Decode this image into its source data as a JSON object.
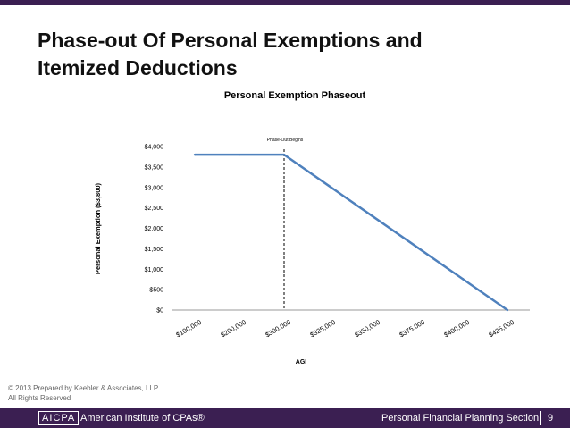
{
  "slide": {
    "title_lines": [
      "Phase-out Of Personal Exemptions and",
      "Itemized Deductions"
    ],
    "page_number": "9"
  },
  "footer": {
    "copyright": "© 2013 Prepared by Keebler & Associates, LLP",
    "rights": "All Rights Reserved",
    "logo_text": "AICPA",
    "org_name": "American Institute of CPAs®",
    "section_name": "Personal Financial Planning Section"
  },
  "colors": {
    "brand": "#3b1f52",
    "series": "#4f81bd"
  },
  "chart_data": {
    "type": "line",
    "title": "Personal Exemption Phaseout",
    "xlabel": "AGI",
    "ylabel": "Personal Exemption ($3,800)",
    "categories": [
      "$100,000",
      "$200,000",
      "$300,000",
      "$325,000",
      "$350,000",
      "$375,000",
      "$400,000",
      "$425,000"
    ],
    "series": [
      {
        "values": [
          3800,
          3800,
          3800,
          3040,
          2280,
          1520,
          760,
          0
        ]
      }
    ],
    "ylim": [
      0,
      4000
    ],
    "yticks": [
      0,
      500,
      1000,
      1500,
      2000,
      2500,
      3000,
      3500,
      4000
    ],
    "ytick_labels": [
      "$0",
      "$500",
      "$1,000",
      "$1,500",
      "$2,000",
      "$2,500",
      "$3,000",
      "$3,500",
      "$4,000"
    ],
    "annotation": {
      "text": "Phase-Out Begins",
      "category": "$300,000"
    },
    "grid": false,
    "legend": "none"
  }
}
